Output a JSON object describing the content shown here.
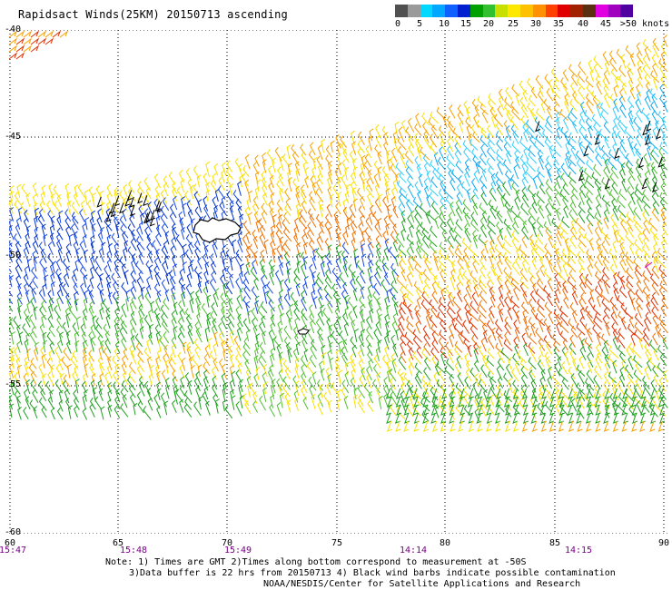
{
  "title": "Rapidsact Winds(25KM) 20150713 ascending",
  "legend": {
    "labels": [
      "0",
      "5",
      "10",
      "15",
      "20",
      "25",
      "30",
      "35",
      "40",
      "45",
      ">50 knots"
    ],
    "colors": [
      "#505050",
      "#9a9a9a",
      "#00d8ff",
      "#00a8ff",
      "#1060ff",
      "#0020d0",
      "#00a000",
      "#30c030",
      "#c8e000",
      "#ffe800",
      "#ffc000",
      "#ff9000",
      "#ff4000",
      "#e00000",
      "#a02000",
      "#5a3010",
      "#e000e0",
      "#a000c0",
      "#5000a0"
    ]
  },
  "map": {
    "lat_labels": [
      "-40",
      "-45",
      "-50",
      "-55",
      "-60"
    ],
    "lon_labels": [
      "60",
      "65",
      "70",
      "75",
      "80",
      "85",
      "90"
    ],
    "time_labels": [
      "15:47",
      "15:48",
      "15:49",
      "14:14",
      "14:15"
    ]
  },
  "notes": {
    "line1": "Note: 1) Times are GMT 2)Times along bottom correspond to measurement at -50S",
    "line2": "3)Data buffer is 22 hrs from 20150713 4) Black wind barbs indicate possible contamination",
    "line3": "NOAA/NESDIS/Center for Satellite Applications and Research"
  }
}
